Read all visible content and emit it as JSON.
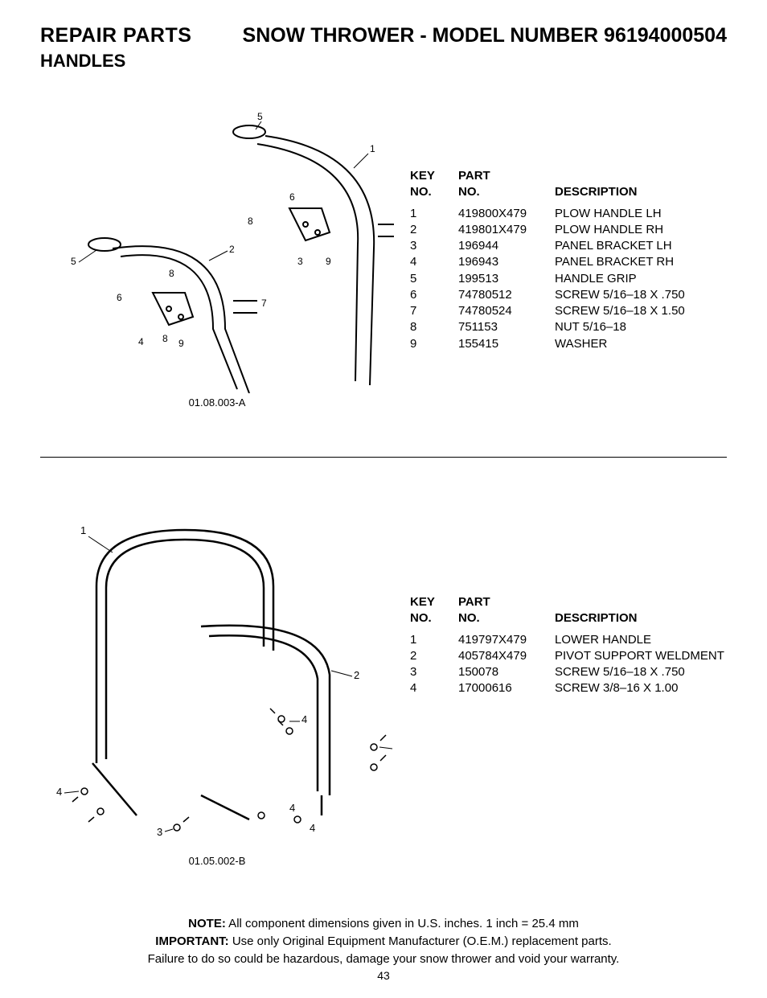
{
  "header": {
    "left": "REPAIR PARTS",
    "right_prefix": "SNOW THROWER - MODEL NUMBER ",
    "model_number": "96194000504",
    "subheader": "HANDLES"
  },
  "table_headers": {
    "key_line1": "KEY",
    "key_line2": "NO.",
    "part_line1": "PART",
    "part_line2": "NO.",
    "desc": "DESCRIPTION"
  },
  "section1": {
    "diagram_label": "01.08.003-A",
    "rows": [
      {
        "key": "1",
        "part": "419800X479",
        "desc": "PLOW HANDLE LH"
      },
      {
        "key": "2",
        "part": "419801X479",
        "desc": "PLOW HANDLE RH"
      },
      {
        "key": "3",
        "part": "196944",
        "desc": "PANEL BRACKET LH"
      },
      {
        "key": "4",
        "part": "196943",
        "desc": "PANEL BRACKET RH"
      },
      {
        "key": "5",
        "part": "199513",
        "desc": "HANDLE GRIP"
      },
      {
        "key": "6",
        "part": "74780512",
        "desc": "SCREW 5/16–18 X .750"
      },
      {
        "key": "7",
        "part": "74780524",
        "desc": "SCREW 5/16–18 X 1.50"
      },
      {
        "key": "8",
        "part": "751153",
        "desc": "NUT 5/16–18"
      },
      {
        "key": "9",
        "part": "155415",
        "desc": "WASHER"
      }
    ]
  },
  "section2": {
    "diagram_label": "01.05.002-B",
    "rows": [
      {
        "key": "1",
        "part": "419797X479",
        "desc": "LOWER HANDLE"
      },
      {
        "key": "2",
        "part": "405784X479",
        "desc": "PIVOT SUPPORT WELDMENT"
      },
      {
        "key": "3",
        "part": "150078",
        "desc": "SCREW 5/16–18 X .750"
      },
      {
        "key": "4",
        "part": "17000616",
        "desc": "SCREW 3/8–16 X 1.00"
      }
    ]
  },
  "footnotes": {
    "note_label": "NOTE:",
    "note_text": "  All component dimensions given in U.S. inches.    1 inch = 25.4 mm",
    "important_label": "IMPORTANT:",
    "important_text": " Use only Original Equipment Manufacturer (O.E.M.) replacement parts.",
    "warranty_text": "Failure to do so could be hazardous, damage your snow thrower and void your warranty."
  },
  "page_number": "43",
  "style": {
    "background_color": "#ffffff",
    "text_color": "#000000",
    "font_family": "Arial, Helvetica, sans-serif",
    "header_fontsize": 25,
    "subheader_fontsize": 22,
    "body_fontsize": 15,
    "diagram_label_fontsize": 13
  }
}
